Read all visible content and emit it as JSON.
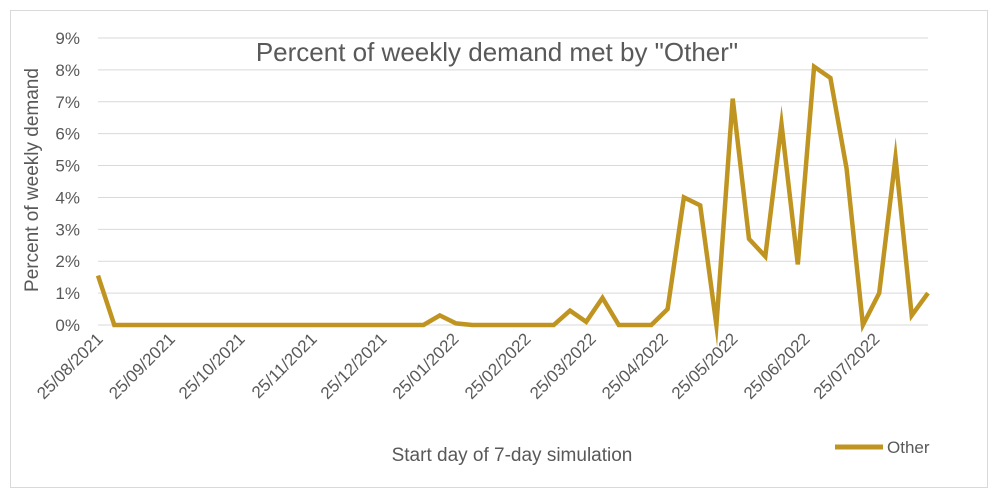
{
  "chart_data": {
    "type": "line",
    "title": "Percent of weekly demand met by \"Other\"",
    "xlabel": "Start day of 7-day simulation",
    "ylabel": "Percent of weekly demand",
    "ylim": [
      0,
      9
    ],
    "y_ticks": [
      "0%",
      "1%",
      "2%",
      "3%",
      "4%",
      "5%",
      "6%",
      "7%",
      "8%",
      "9%"
    ],
    "x_ticks": [
      "25/08/2021",
      "25/09/2021",
      "25/10/2021",
      "25/11/2021",
      "25/12/2021",
      "25/01/2022",
      "25/02/2022",
      "25/03/2022",
      "25/04/2022",
      "25/05/2022",
      "25/06/2022",
      "25/07/2022"
    ],
    "grid": true,
    "legend_position": "bottom-right",
    "colors": {
      "line": "#c09420",
      "grid": "#d9d9d9"
    },
    "series": [
      {
        "name": "Other",
        "x": [
          "25/08/2021",
          "01/09/2021",
          "08/09/2021",
          "15/09/2021",
          "22/09/2021",
          "29/09/2021",
          "06/10/2021",
          "13/10/2021",
          "20/10/2021",
          "27/10/2021",
          "03/11/2021",
          "10/11/2021",
          "17/11/2021",
          "24/11/2021",
          "01/12/2021",
          "08/12/2021",
          "15/12/2021",
          "22/12/2021",
          "29/12/2021",
          "05/01/2022",
          "12/01/2022",
          "19/01/2022",
          "26/01/2022",
          "02/02/2022",
          "09/02/2022",
          "16/02/2022",
          "23/02/2022",
          "02/03/2022",
          "09/03/2022",
          "16/03/2022",
          "23/03/2022",
          "30/03/2022",
          "06/04/2022",
          "13/04/2022",
          "20/04/2022",
          "27/04/2022",
          "04/05/2022",
          "11/05/2022",
          "18/05/2022",
          "25/05/2022",
          "01/06/2022",
          "08/06/2022",
          "15/06/2022",
          "22/06/2022",
          "29/06/2022",
          "06/07/2022",
          "13/07/2022",
          "20/07/2022",
          "27/07/2022",
          "03/08/2022",
          "10/08/2022",
          "17/08/2022"
        ],
        "values": [
          1.55,
          0,
          0,
          0,
          0,
          0,
          0,
          0,
          0,
          0,
          0,
          0,
          0,
          0,
          0,
          0,
          0,
          0,
          0,
          0,
          0,
          0.3,
          0.05,
          0,
          0,
          0,
          0,
          0,
          0,
          0.45,
          0.1,
          0.85,
          0,
          0,
          0,
          0.5,
          4.0,
          3.75,
          0,
          7.1,
          2.7,
          2.15,
          6.3,
          1.9,
          8.1,
          7.75,
          4.9,
          0,
          1.0,
          5.25,
          0.3,
          1.0
        ]
      }
    ]
  }
}
